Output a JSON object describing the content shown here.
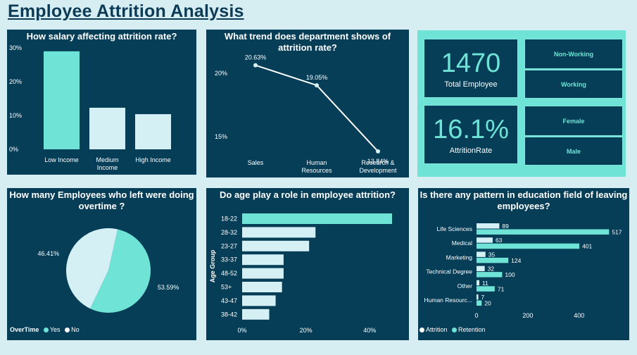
{
  "page": {
    "title": "Employee Attrition Analysis"
  },
  "colors": {
    "background": "#d6eef2",
    "panel": "#063e58",
    "accent": "#6ee3d6",
    "light": "#d4f0f4"
  },
  "salary_panel": {
    "title": "How salary affecting attrition rate?"
  },
  "department_panel": {
    "title_line1": "What trend does department shows of",
    "title_line2": "attrition rate?"
  },
  "overtime_panel": {
    "title_line1": "How many Employees who left were doing",
    "title_line2": "overtime ?",
    "legend_title": "OverTime",
    "legend_yes": "Yes",
    "legend_no": "No"
  },
  "age_panel": {
    "title": "Do age play a role in employee attrition?"
  },
  "education_panel": {
    "title_line1": "Is there any pattern in education field of leaving",
    "title_line2": "employees?",
    "legend_attrition": "Attrition",
    "legend_retention": "Retention"
  },
  "kpis": {
    "total_value": "1470",
    "total_label": "Total Employee",
    "rate_value": "16.1%",
    "rate_label": "AttritionRate"
  },
  "slicers": {
    "non_working": "Non-Working",
    "working": "Working",
    "female": "Female",
    "male": "Male"
  },
  "chart_data": [
    {
      "type": "bar",
      "title": "How salary affecting attrition rate?",
      "categories": [
        "Low Income",
        "Medium Income",
        "High Income"
      ],
      "category_lines": [
        [
          "Low Income"
        ],
        [
          "Medium",
          "Income"
        ],
        [
          "High Income"
        ]
      ],
      "values": [
        29,
        12.3,
        10.4
      ],
      "colors": [
        "#6ee3d6",
        "#d4f0f4",
        "#d4f0f4"
      ],
      "ylim": [
        0,
        30
      ],
      "yticks": [
        0,
        10,
        20,
        30
      ],
      "ytick_labels": [
        "0%",
        "10%",
        "20%",
        "30%"
      ]
    },
    {
      "type": "line",
      "title": "What trend does department shows of attrition rate?",
      "categories": [
        "Sales",
        "Human Resources",
        "Research & Development"
      ],
      "category_lines": [
        [
          "Sales"
        ],
        [
          "Human",
          "Resources"
        ],
        [
          "Research &",
          "Development"
        ]
      ],
      "values": [
        20.63,
        19.05,
        13.84
      ],
      "labels": [
        "20.63%",
        "19.05%",
        "13.84%"
      ],
      "ylim": [
        13,
        22
      ],
      "yticks": [
        15,
        20
      ],
      "ytick_labels": [
        "15%",
        "20%"
      ]
    },
    {
      "type": "pie",
      "title": "How many Employees who left were doing overtime ?",
      "series": [
        {
          "name": "Yes",
          "value": 53.59,
          "label": "53.59%",
          "color": "#6ee3d6"
        },
        {
          "name": "No",
          "value": 46.41,
          "label": "46.41%",
          "color": "#d4f0f4"
        }
      ]
    },
    {
      "type": "bar",
      "orientation": "horizontal",
      "title": "Do age play a role in employee attrition?",
      "ylabel": "Age Group",
      "categories": [
        "18-22",
        "28-32",
        "23-27",
        "33-37",
        "48-52",
        "53+",
        "43-47",
        "38-42"
      ],
      "values": [
        47,
        23,
        21,
        13,
        13,
        12.5,
        10.5,
        8.5
      ],
      "colors": [
        "#6ee3d6",
        "#d4f0f4",
        "#d4f0f4",
        "#d4f0f4",
        "#d4f0f4",
        "#d4f0f4",
        "#d4f0f4",
        "#d4f0f4"
      ],
      "xlim": [
        0,
        47
      ],
      "xticks": [
        0,
        20,
        40
      ],
      "xtick_labels": [
        "0%",
        "20%",
        "40%"
      ]
    },
    {
      "type": "bar",
      "orientation": "horizontal",
      "title": "Is there any pattern in education field of leaving employees?",
      "categories": [
        "Life Sciences",
        "Medical",
        "Marketing",
        "Technical Degree",
        "Other",
        "Human Resourc..."
      ],
      "series": [
        {
          "name": "Attrition",
          "values": [
            89,
            63,
            35,
            32,
            11,
            7
          ],
          "color": "#d4f0f4"
        },
        {
          "name": "Retention",
          "values": [
            517,
            401,
            124,
            100,
            71,
            20
          ],
          "color": "#6ee3d6"
        }
      ],
      "xlim": [
        0,
        560
      ],
      "xticks": [
        0,
        200,
        400
      ],
      "xtick_labels": [
        "0",
        "200",
        "400"
      ]
    }
  ]
}
